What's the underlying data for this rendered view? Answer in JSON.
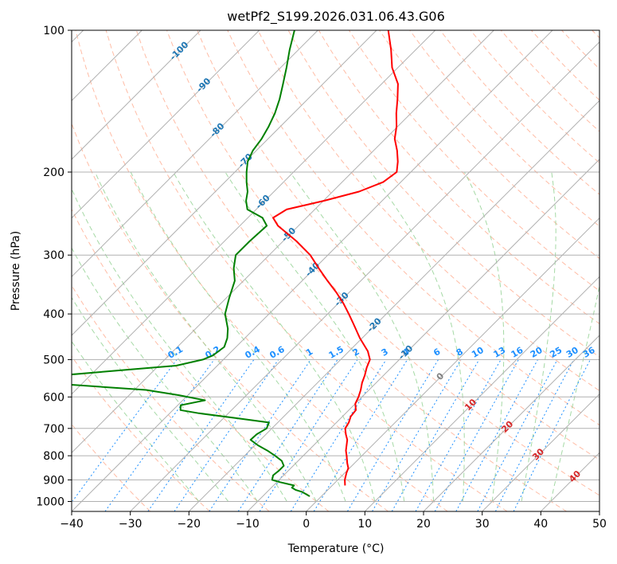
{
  "chart_data": {
    "type": "line",
    "subtype": "skew-t log-p",
    "title": "wetPf2_S199.2026.031.06.43.G06",
    "xlabel": "Temperature (°C)",
    "ylabel": "Pressure (hPa)",
    "xlim": [
      -40,
      50
    ],
    "ylim": [
      1050,
      100
    ],
    "y_scale": "log",
    "grid": true,
    "x_ticks": [
      "−40",
      "−30",
      "−20",
      "−10",
      "0",
      "10",
      "20",
      "30",
      "40",
      "50"
    ],
    "y_ticks": [
      1000,
      900,
      800,
      700,
      600,
      500,
      400,
      300,
      200,
      100
    ],
    "skew": 1.0,
    "colors": {
      "temperature": "#ff0000",
      "dewpoint": "#008000",
      "isotherm": "#b0b0b0",
      "dry_adiabat": "#ff9f7f",
      "moist_adiabat": "#8fcf8f",
      "mixing_ratio": "#1e90ff",
      "isotherm_label": "#1f77b4",
      "warm_label": "#d62728",
      "zero_label": "#808080"
    },
    "isotherm_labels": [
      "-100",
      "-90",
      "-80",
      "-70",
      "-60",
      "-50",
      "-40",
      "-30",
      "-20",
      "-10",
      "0",
      "10",
      "20",
      "30",
      "40"
    ],
    "mixing_ratio_labels": [
      "0.1",
      "0.2",
      "0.4",
      "0.6",
      "1",
      "1.5",
      "2",
      "3",
      "4",
      "6",
      "8",
      "10",
      "13",
      "16",
      "20",
      "25",
      "30",
      "36"
    ],
    "series": [
      {
        "name": "temperature",
        "pressure": [
          925,
          900,
          870,
          850,
          830,
          800,
          780,
          740,
          720,
          700,
          680,
          660,
          640,
          620,
          600,
          580,
          560,
          540,
          520,
          500,
          480,
          450,
          420,
          400,
          380,
          360,
          340,
          320,
          300,
          280,
          260,
          250,
          240,
          230,
          220,
          210,
          200,
          190,
          180,
          170,
          160,
          150,
          140,
          130,
          120,
          110,
          100
        ],
        "values": [
          2.2,
          1.2,
          0.3,
          -0.2,
          -1.2,
          -2.6,
          -3.6,
          -5.2,
          -6.4,
          -7.5,
          -7.9,
          -8.6,
          -8.8,
          -10.0,
          -10.6,
          -11.4,
          -12.4,
          -13.2,
          -14.2,
          -15.0,
          -16.8,
          -20.4,
          -23.9,
          -26.4,
          -29.1,
          -32.2,
          -35.7,
          -39.3,
          -43.0,
          -47.8,
          -53.5,
          -55.7,
          -54.8,
          -49.9,
          -45.5,
          -43.0,
          -42.4,
          -44.0,
          -46.0,
          -48.4,
          -50.2,
          -52.5,
          -54.7,
          -57.2,
          -61.0,
          -64.2,
          -68.0
        ]
      },
      {
        "name": "dewpoint",
        "pressure": [
          975,
          965,
          955,
          945,
          935,
          925,
          910,
          900,
          880,
          860,
          840,
          820,
          800,
          780,
          760,
          740,
          720,
          700,
          680,
          665,
          650,
          640,
          625,
          610,
          595,
          580,
          565,
          555,
          545,
          530,
          515,
          500,
          490,
          470,
          450,
          430,
          400,
          370,
          340,
          320,
          300,
          280,
          260,
          250,
          240,
          230,
          220,
          210,
          200,
          190,
          180,
          170,
          160,
          150,
          140,
          130,
          120,
          110,
          100
        ],
        "values": [
          -2.0,
          -3.0,
          -4.0,
          -5.5,
          -6.5,
          -6.5,
          -9.5,
          -11.2,
          -11.8,
          -11.6,
          -11.6,
          -12.8,
          -14.8,
          -17.0,
          -19.5,
          -21.7,
          -21.6,
          -20.9,
          -21.5,
          -28.0,
          -35.0,
          -38.7,
          -39.5,
          -36.2,
          -41.5,
          -48.0,
          -62.0,
          -68.0,
          -68.5,
          -58.0,
          -47.0,
          -43.5,
          -42.5,
          -42.0,
          -43.0,
          -44.5,
          -47.5,
          -49.5,
          -51.5,
          -53.8,
          -55.7,
          -55.7,
          -55.4,
          -57.5,
          -61.5,
          -63.2,
          -64.5,
          -66.3,
          -68.0,
          -69.6,
          -70.6,
          -71.1,
          -72.0,
          -73.2,
          -74.8,
          -76.8,
          -79.0,
          -81.5,
          -84.0
        ]
      }
    ]
  }
}
